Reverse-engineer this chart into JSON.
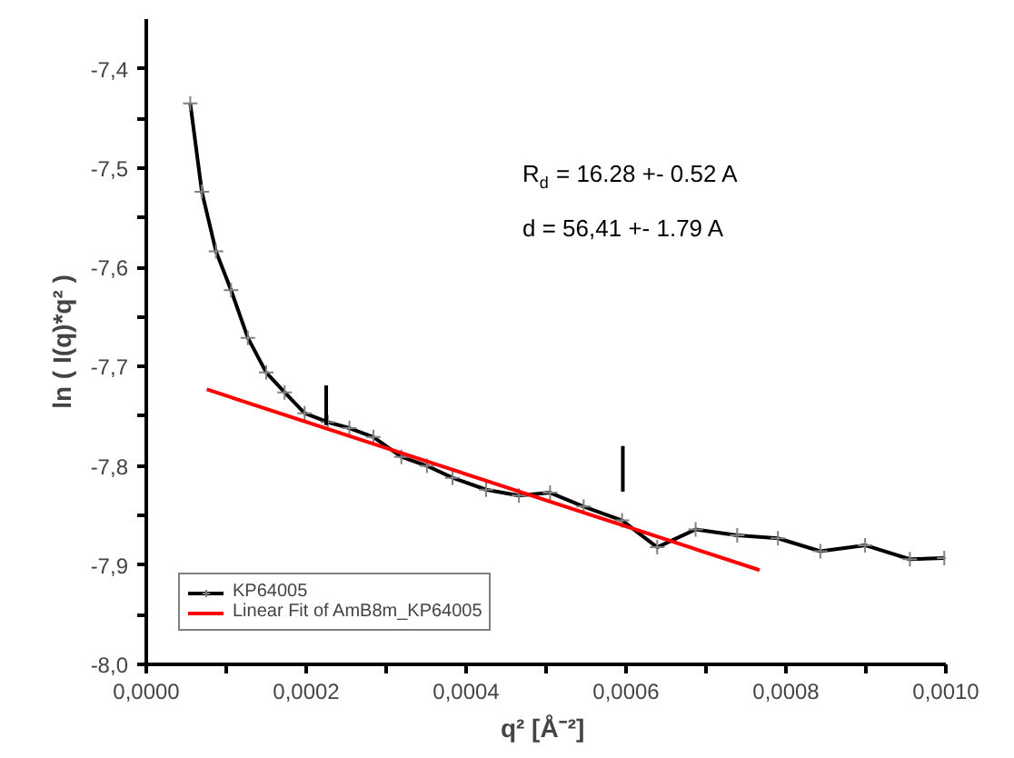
{
  "chart_data": {
    "type": "line",
    "xlabel": "q²  [Å⁻²]",
    "ylabel": "ln ( I(q)*q² )",
    "annotations": [
      "R$_{d}$ = 16.28 +- 0.52 A",
      "d = 56,41 +- 1.79 A"
    ],
    "series": [
      {
        "name": "KP64005",
        "color": "#000000",
        "marker": "cross",
        "line_style": "solid",
        "x": [
          5.5e-05,
          6.95e-05,
          8.72e-05,
          0.000106,
          0.000127,
          0.00015,
          0.000173,
          0.000198,
          0.000227,
          0.000254,
          0.000284,
          0.000319,
          0.000351,
          0.000383,
          0.000425,
          0.000466,
          0.000505,
          0.000547,
          0.000595,
          0.000639,
          0.000687,
          0.000739,
          0.00079,
          0.000843,
          0.000899,
          0.000955,
          0.000998
        ],
        "values": [
          -7.435,
          -7.524,
          -7.584,
          -7.623,
          -7.671,
          -7.706,
          -7.726,
          -7.747,
          -7.756,
          -7.762,
          -7.771,
          -7.791,
          -7.8,
          -7.812,
          -7.824,
          -7.83,
          -7.827,
          -7.841,
          -7.855,
          -7.882,
          -7.864,
          -7.87,
          -7.873,
          -7.886,
          -7.88,
          -7.894,
          -7.893
        ]
      },
      {
        "name": "Linear Fit of AmB8m_KP64005",
        "color": "#ff0000",
        "marker": "none",
        "line_style": "solid",
        "x": [
          7.57e-05,
          0.000767
        ],
        "values": [
          -7.723,
          -7.905
        ]
      },
      {
        "color": "#000000",
        "marker": "none",
        "line_style": "solid",
        "x": [
          0.000225,
          0.000225
        ],
        "values": [
          -7.719,
          -7.759
        ]
      },
      {
        "color": "#000000",
        "marker": "none",
        "line_style": "solid",
        "x": [
          0.000596,
          0.000596
        ],
        "values": [
          -7.78,
          -7.826
        ]
      }
    ],
    "xlim": [
      0,
      0.001
    ],
    "ylim": [
      -8.0,
      -7.35
    ],
    "xticks": [
      {
        "value": 0,
        "label": "0,0000"
      },
      {
        "value": 0.0001,
        "label": null
      },
      {
        "value": 0.0002,
        "label": "0,0002"
      },
      {
        "value": 0.0003,
        "label": null
      },
      {
        "value": 0.0004,
        "label": "0,0004"
      },
      {
        "value": 0.0005,
        "label": null
      },
      {
        "value": 0.0006,
        "label": "0,0006"
      },
      {
        "value": 0.0007,
        "label": null
      },
      {
        "value": 0.0008,
        "label": "0,0008"
      },
      {
        "value": 0.0009,
        "label": null
      },
      {
        "value": 0.001,
        "label": "0,0010"
      }
    ],
    "yticks": [
      {
        "value": -8.0,
        "label": "-8,0"
      },
      {
        "value": -7.95,
        "label": null
      },
      {
        "value": -7.9,
        "label": "-7,9"
      },
      {
        "value": -7.85,
        "label": null
      },
      {
        "value": -7.8,
        "label": "-7,8"
      },
      {
        "value": -7.75,
        "label": null
      },
      {
        "value": -7.7,
        "label": "-7,7"
      },
      {
        "value": -7.65,
        "label": null
      },
      {
        "value": -7.6,
        "label": "-7,6"
      },
      {
        "value": -7.55,
        "label": null
      },
      {
        "value": -7.5,
        "label": "-7,5"
      },
      {
        "value": -7.45,
        "label": null
      },
      {
        "value": -7.4,
        "label": "-7,4"
      }
    ],
    "grid": false,
    "legend": "bottom left"
  }
}
